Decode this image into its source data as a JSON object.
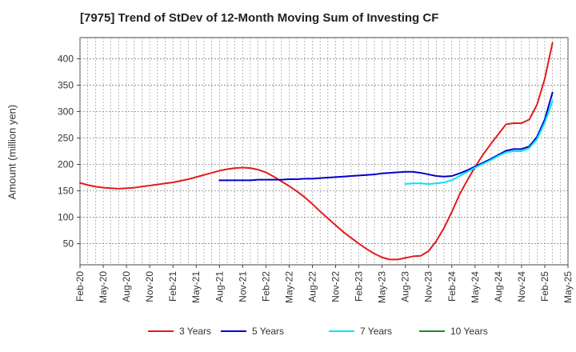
{
  "chart_data": {
    "type": "line",
    "title": "[7975]  Trend of StDev of 12-Month Moving Sum of Investing CF",
    "xlabel": "",
    "ylabel": "Amount (million yen)",
    "ylim": [
      10,
      440
    ],
    "yticks": [
      50,
      100,
      150,
      200,
      250,
      300,
      350,
      400
    ],
    "xticks": [
      "Feb-20",
      "May-20",
      "Aug-20",
      "Nov-20",
      "Feb-21",
      "May-21",
      "Aug-21",
      "Nov-21",
      "Feb-22",
      "May-22",
      "Aug-22",
      "Nov-22",
      "Feb-23",
      "May-23",
      "Aug-23",
      "Nov-23",
      "Feb-24",
      "May-24",
      "Aug-24",
      "Nov-24",
      "Feb-25",
      "May-25"
    ],
    "grid": true,
    "legend_position": "bottom",
    "series": [
      {
        "name": "3 Years",
        "color": "#e41a1c",
        "points": [
          [
            "Feb-20",
            165
          ],
          [
            "Mar-20",
            161
          ],
          [
            "Apr-20",
            158
          ],
          [
            "May-20",
            156
          ],
          [
            "Jun-20",
            155
          ],
          [
            "Jul-20",
            154
          ],
          [
            "Aug-20",
            155
          ],
          [
            "Sep-20",
            156
          ],
          [
            "Oct-20",
            158
          ],
          [
            "Nov-20",
            160
          ],
          [
            "Dec-20",
            162
          ],
          [
            "Jan-21",
            164
          ],
          [
            "Feb-21",
            166
          ],
          [
            "Mar-21",
            169
          ],
          [
            "Apr-21",
            172
          ],
          [
            "May-21",
            176
          ],
          [
            "Jun-21",
            180
          ],
          [
            "Jul-21",
            184
          ],
          [
            "Aug-21",
            188
          ],
          [
            "Sep-21",
            191
          ],
          [
            "Oct-21",
            193
          ],
          [
            "Nov-21",
            194
          ],
          [
            "Dec-21",
            193
          ],
          [
            "Jan-22",
            190
          ],
          [
            "Feb-22",
            185
          ],
          [
            "Mar-22",
            177
          ],
          [
            "Apr-22",
            168
          ],
          [
            "May-22",
            159
          ],
          [
            "Jun-22",
            149
          ],
          [
            "Jul-22",
            138
          ],
          [
            "Aug-22",
            125
          ],
          [
            "Sep-22",
            111
          ],
          [
            "Oct-22",
            98
          ],
          [
            "Nov-22",
            85
          ],
          [
            "Dec-22",
            72
          ],
          [
            "Jan-23",
            61
          ],
          [
            "Feb-23",
            50
          ],
          [
            "Mar-23",
            40
          ],
          [
            "Apr-23",
            31
          ],
          [
            "May-23",
            24
          ],
          [
            "Jun-23",
            20
          ],
          [
            "Jul-23",
            20
          ],
          [
            "Aug-23",
            23
          ],
          [
            "Sep-23",
            26
          ],
          [
            "Oct-23",
            27
          ],
          [
            "Nov-23",
            36
          ],
          [
            "Dec-23",
            55
          ],
          [
            "Jan-24",
            80
          ],
          [
            "Feb-24",
            110
          ],
          [
            "Mar-24",
            143
          ],
          [
            "Apr-24",
            170
          ],
          [
            "May-24",
            195
          ],
          [
            "Jun-24",
            218
          ],
          [
            "Jul-24",
            238
          ],
          [
            "Aug-24",
            257
          ],
          [
            "Sep-24",
            276
          ],
          [
            "Oct-24",
            278
          ],
          [
            "Nov-24",
            278
          ],
          [
            "Dec-24",
            285
          ],
          [
            "Jan-25",
            313
          ],
          [
            "Feb-25",
            362
          ],
          [
            "Mar-25",
            430
          ]
        ]
      },
      {
        "name": "5 Years",
        "color": "#0000cc",
        "points": [
          [
            "Aug-21",
            170
          ],
          [
            "Sep-21",
            170
          ],
          [
            "Oct-21",
            170
          ],
          [
            "Nov-21",
            170
          ],
          [
            "Dec-21",
            170
          ],
          [
            "Jan-22",
            171
          ],
          [
            "Feb-22",
            171
          ],
          [
            "Mar-22",
            171
          ],
          [
            "Apr-22",
            171
          ],
          [
            "May-22",
            172
          ],
          [
            "Jun-22",
            172
          ],
          [
            "Jul-22",
            173
          ],
          [
            "Aug-22",
            173
          ],
          [
            "Sep-22",
            174
          ],
          [
            "Oct-22",
            175
          ],
          [
            "Nov-22",
            176
          ],
          [
            "Dec-22",
            177
          ],
          [
            "Jan-23",
            178
          ],
          [
            "Feb-23",
            179
          ],
          [
            "Mar-23",
            180
          ],
          [
            "Apr-23",
            181
          ],
          [
            "May-23",
            183
          ],
          [
            "Jun-23",
            184
          ],
          [
            "Jul-23",
            185
          ],
          [
            "Aug-23",
            186
          ],
          [
            "Sep-23",
            186
          ],
          [
            "Oct-23",
            184
          ],
          [
            "Nov-23",
            181
          ],
          [
            "Dec-23",
            178
          ],
          [
            "Jan-24",
            177
          ],
          [
            "Feb-24",
            178
          ],
          [
            "Mar-24",
            183
          ],
          [
            "Apr-24",
            189
          ],
          [
            "May-24",
            196
          ],
          [
            "Jun-24",
            203
          ],
          [
            "Jul-24",
            210
          ],
          [
            "Aug-24",
            218
          ],
          [
            "Sep-24",
            226
          ],
          [
            "Oct-24",
            229
          ],
          [
            "Nov-24",
            229
          ],
          [
            "Dec-24",
            234
          ],
          [
            "Jan-25",
            252
          ],
          [
            "Feb-25",
            285
          ],
          [
            "Mar-25",
            336
          ]
        ]
      },
      {
        "name": "7 Years",
        "color": "#00e5ff",
        "points": [
          [
            "Aug-23",
            163
          ],
          [
            "Sep-23",
            164
          ],
          [
            "Oct-23",
            164
          ],
          [
            "Nov-23",
            163
          ],
          [
            "Dec-23",
            164
          ],
          [
            "Jan-24",
            166
          ],
          [
            "Feb-24",
            170
          ],
          [
            "Mar-24",
            178
          ],
          [
            "Apr-24",
            186
          ],
          [
            "May-24",
            194
          ],
          [
            "Jun-24",
            201
          ],
          [
            "Jul-24",
            208
          ],
          [
            "Aug-24",
            216
          ],
          [
            "Sep-24",
            223
          ],
          [
            "Oct-24",
            225
          ],
          [
            "Nov-24",
            225
          ],
          [
            "Dec-24",
            231
          ],
          [
            "Jan-25",
            248
          ],
          [
            "Feb-25",
            279
          ],
          [
            "Mar-25",
            320
          ]
        ]
      },
      {
        "name": "10 Years",
        "color": "#228b22",
        "points": []
      }
    ]
  }
}
